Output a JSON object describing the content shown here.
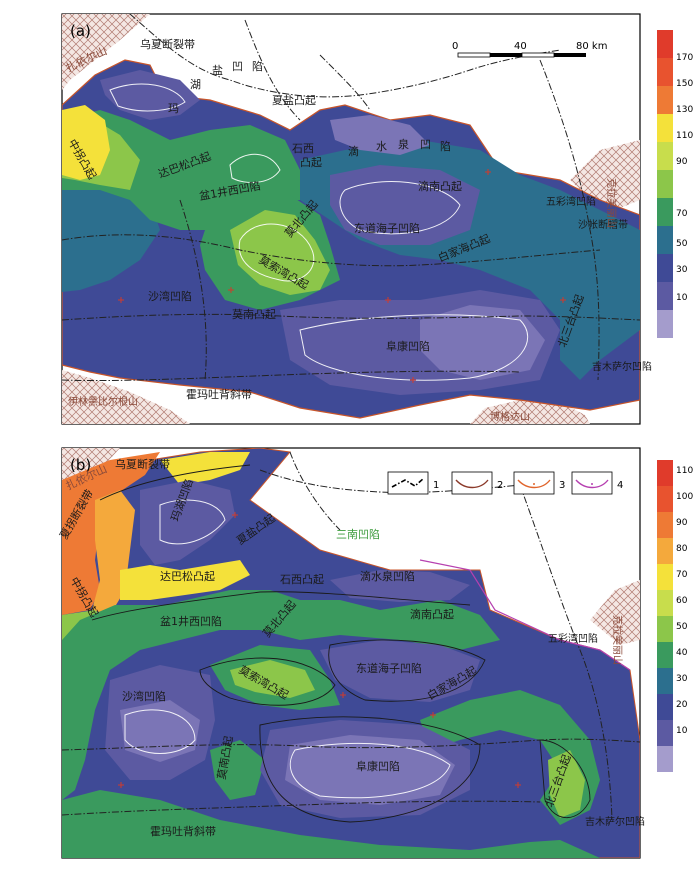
{
  "panels": [
    {
      "label": "(a)",
      "scale": {
        "ticks": [
          "0",
          "40",
          "80 km"
        ]
      },
      "colorbar": {
        "ticks": [
          "170",
          "150",
          "130",
          "110",
          "90",
          "70",
          "50",
          "30",
          "10"
        ]
      },
      "regions": [
        "乌夏断裂带",
        "扎依尔山",
        "中拐凸起",
        "达巴松凸起",
        "玛",
        "湖",
        "盐",
        "凹",
        "陷",
        "夏盐凸起",
        "石西",
        "凸起",
        "滴",
        "水",
        "泉",
        "凹",
        "陷",
        "滴南凸起",
        "盆1井西凹陷",
        "莫北凸起",
        "莫索湾凸起",
        "东道海子凹陷",
        "白家海凸起",
        "五彩湾凹陷",
        "沙帐断褶带",
        "沙湾凹陷",
        "莫南凸起",
        "阜康凹陷",
        "北三台凸起",
        "吉木萨尔凹陷",
        "霍玛吐背斜带",
        "伊林黑比尔根山",
        "博格达山",
        "克拉美丽山"
      ]
    },
    {
      "label": "(b)",
      "legend": [
        "1",
        "2",
        "3",
        "4"
      ],
      "colorbar": {
        "ticks": [
          "110",
          "100",
          "90",
          "80",
          "70",
          "60",
          "50",
          "40",
          "30",
          "20",
          "10"
        ]
      },
      "regions": [
        "乌夏断裂带",
        "扎依尔山",
        "夏拐断裂带",
        "中拐凸起",
        "达巴松凸起",
        "玛湖凹陷",
        "夏盐凸起",
        "三南凹陷",
        "石西凸起",
        "滴水泉凹陷",
        "滴南凸起",
        "盆1井西凹陷",
        "莫北凸起",
        "莫索湾凸起",
        "东道海子凹陷",
        "白家海凸起",
        "五彩湾凹陷",
        "沙湾凹陷",
        "莫南凸起",
        "阜康凹陷",
        "北三台凸起",
        "吉木萨尔凹陷",
        "霍玛吐背斜带",
        "克拉美丽山"
      ]
    }
  ],
  "colors": {
    "c10": "#a49ccc",
    "c20": "#7b75b6",
    "c30": "#5c5aa2",
    "c40": "#3f4a96",
    "c50": "#2c6f8e",
    "c60": "#3a9a5e",
    "c70": "#8cc64a",
    "c80": "#c8dd4c",
    "c90": "#f4e13a",
    "c100": "#f4a93c",
    "c110": "#ee7a35",
    "c130": "#e8532f",
    "c170": "#e03b2b",
    "mountain": "#f4e7e3",
    "mountainLine": "#b07a70",
    "border": "#c8552a",
    "fault": "#222222"
  }
}
